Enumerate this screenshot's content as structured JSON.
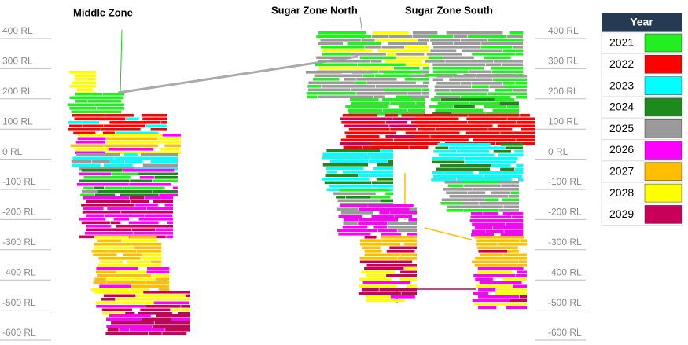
{
  "zones": [
    "Middle Zone",
    "Sugar Zone North",
    "Sugar Zone South"
  ],
  "levels": [
    "400 RL",
    "300 RL",
    "200 RL",
    "100 RL",
    "0 RL",
    "-100 RL",
    "-200 RL",
    "-300 RL",
    "-400 RL",
    "-500 RL",
    "-600 RL"
  ],
  "legend": {
    "title": "Year",
    "items": [
      {
        "name": "2021",
        "color": "#22ee22"
      },
      {
        "name": "2022",
        "color": "#ff0000"
      },
      {
        "name": "2023",
        "color": "#00ffff"
      },
      {
        "name": "2024",
        "color": "#1e8a1e"
      },
      {
        "name": "2025",
        "color": "#9a9a9a"
      },
      {
        "name": "2026",
        "color": "#ff00ff"
      },
      {
        "name": "2027",
        "color": "#ffbf00"
      },
      {
        "name": "2028",
        "color": "#ffff00"
      },
      {
        "name": "2029",
        "color": "#c8005a"
      }
    ]
  }
}
